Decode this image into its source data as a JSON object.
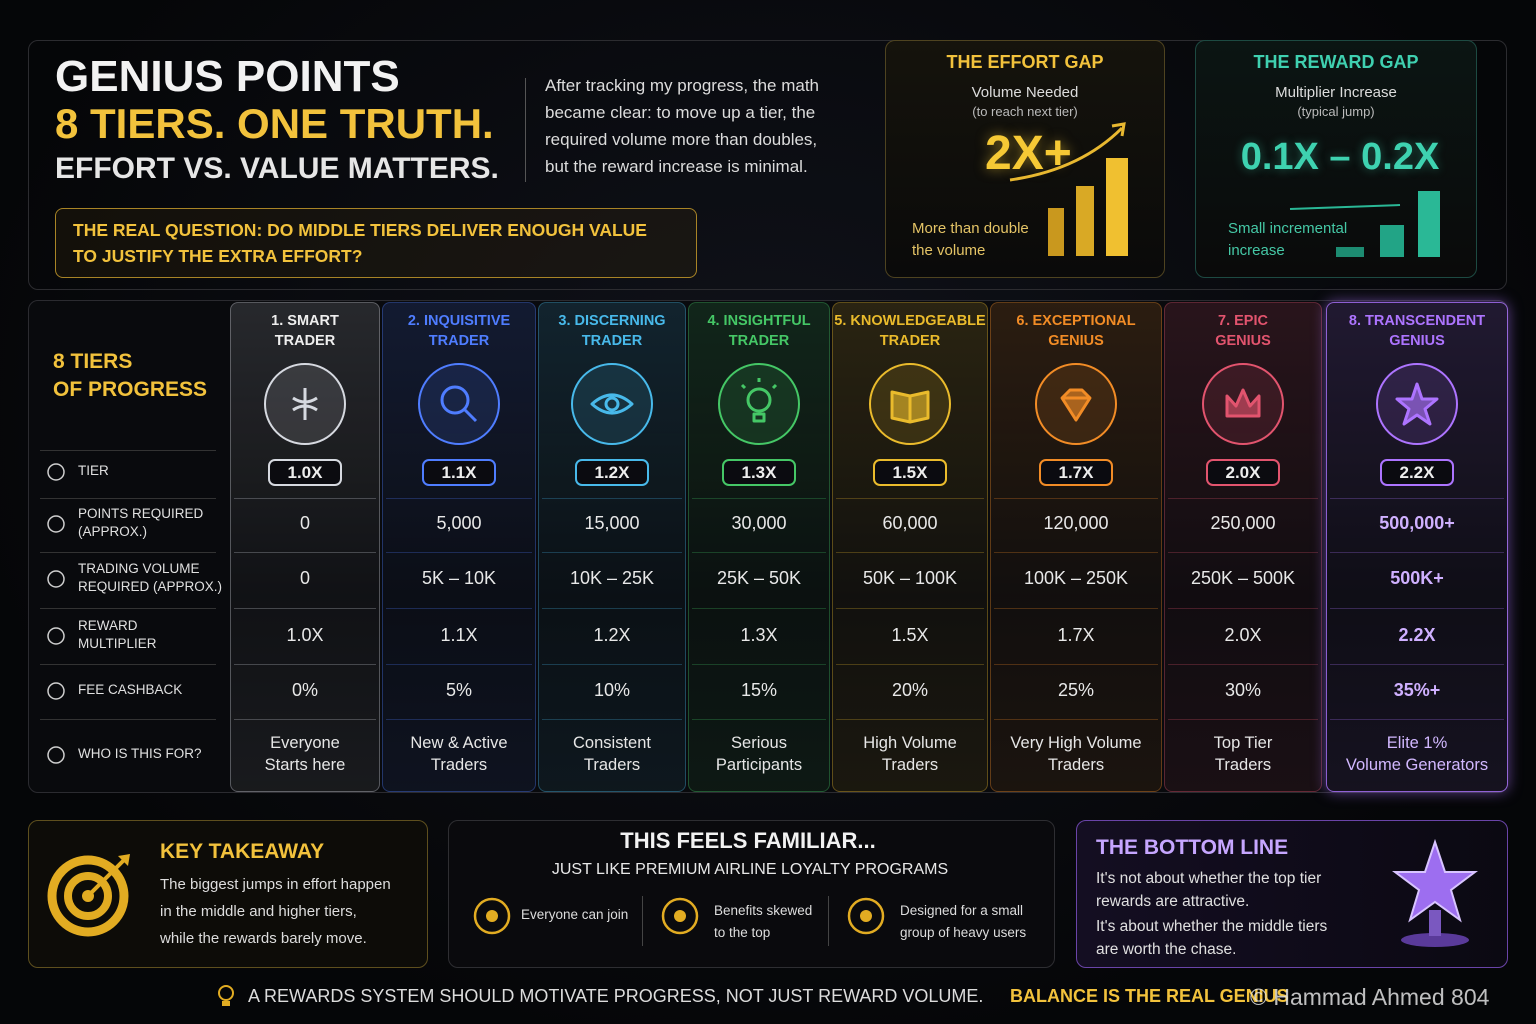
{
  "header": {
    "title": "GENIUS POINTS",
    "headline": "8 TIERS. ONE TRUTH.",
    "tagline": "EFFORT VS. VALUE MATTERS.",
    "intro": [
      "After tracking my progress, the math",
      "became clear: to move up a tier, the",
      "required volume more than doubles,",
      "but the reward increase is minimal."
    ],
    "question": [
      "THE REAL QUESTION: DO MIDDLE TIERS DELIVER ENOUGH VALUE",
      "TO JUSTIFY THE EXTRA EFFORT?"
    ]
  },
  "effort_gap": {
    "title": "THE EFFORT GAP",
    "label": "Volume Needed",
    "sublabel": "(to reach next tier)",
    "value": "2X+",
    "note": [
      "More than double",
      "the volume"
    ]
  },
  "reward_gap": {
    "title": "THE REWARD GAP",
    "label": "Multiplier Increase",
    "sublabel": "(typical jump)",
    "value": "0.1X – 0.2X",
    "note": [
      "Small incremental",
      "increase"
    ]
  },
  "table": {
    "heading": [
      "8 TIERS",
      "OF PROGRESS"
    ],
    "row_labels": [
      [
        "TIER"
      ],
      [
        "POINTS REQUIRED",
        "(APPROX.)"
      ],
      [
        "TRADING VOLUME",
        "REQUIRED (APPROX.)"
      ],
      [
        "REWARD",
        "MULTIPLIER"
      ],
      [
        "FEE CASHBACK"
      ],
      [
        "WHO IS THIS FOR?"
      ]
    ],
    "tiers": [
      {
        "name": [
          "1. SMART",
          "TRADER"
        ],
        "badge": "1.0X",
        "points": "0",
        "volume": "0",
        "multiplier": "1.0X",
        "cashback": "0%",
        "audience": [
          "Everyone",
          "Starts here"
        ],
        "color": "#d6d9e0"
      },
      {
        "name": [
          "2. INQUISITIVE",
          "TRADER"
        ],
        "badge": "1.1X",
        "points": "5,000",
        "volume": "5K – 10K",
        "multiplier": "1.1X",
        "cashback": "5%",
        "audience": [
          "New & Active",
          "Traders"
        ],
        "color": "#4f7dff"
      },
      {
        "name": [
          "3. DISCERNING",
          "TRADER"
        ],
        "badge": "1.2X",
        "points": "15,000",
        "volume": "10K – 25K",
        "multiplier": "1.2X",
        "cashback": "10%",
        "audience": [
          "Consistent",
          "Traders"
        ],
        "color": "#48b9ea"
      },
      {
        "name": [
          "4. INSIGHTFUL",
          "TRADER"
        ],
        "badge": "1.3X",
        "points": "30,000",
        "volume": "25K – 50K",
        "multiplier": "1.3X",
        "cashback": "15%",
        "audience": [
          "Serious",
          "Participants"
        ],
        "color": "#45c766"
      },
      {
        "name": [
          "5. KNOWLEDGEABLE",
          "TRADER"
        ],
        "badge": "1.5X",
        "points": "60,000",
        "volume": "50K – 100K",
        "multiplier": "1.5X",
        "cashback": "20%",
        "audience": [
          "High Volume",
          "Traders"
        ],
        "color": "#eabb2c"
      },
      {
        "name": [
          "6. EXCEPTIONAL",
          "GENIUS"
        ],
        "badge": "1.7X",
        "points": "120,000",
        "volume": "100K – 250K",
        "multiplier": "1.7X",
        "cashback": "25%",
        "audience": [
          "Very High Volume",
          "Traders"
        ],
        "color": "#f28c26"
      },
      {
        "name": [
          "7. EPIC",
          "GENIUS"
        ],
        "badge": "2.0X",
        "points": "250,000",
        "volume": "250K – 500K",
        "multiplier": "2.0X",
        "cashback": "30%",
        "audience": [
          "Top Tier",
          "Traders"
        ],
        "color": "#e2546e"
      },
      {
        "name": [
          "8. TRANSCENDENT",
          "GENIUS"
        ],
        "badge": "2.2X",
        "points": "500,000+",
        "volume": "500K+",
        "multiplier": "2.2X",
        "cashback": "35%+",
        "audience": [
          "Elite 1%",
          "Volume Generators"
        ],
        "color": "#ad74ff"
      }
    ]
  },
  "takeaway": {
    "title": "KEY TAKEAWAY",
    "text": [
      "The biggest jumps in effort happen",
      "in the middle and higher tiers,",
      "while the rewards barely move."
    ]
  },
  "familiar": {
    "title": "THIS FEELS FAMILIAR...",
    "subtitle": "JUST LIKE PREMIUM AIRLINE LOYALTY PROGRAMS",
    "items": [
      [
        "Everyone can join"
      ],
      [
        "Benefits skewed",
        "to the top"
      ],
      [
        "Designed for a small",
        "group of heavy users"
      ]
    ]
  },
  "bottom_line": {
    "title": "THE BOTTOM LINE",
    "paragraphs": [
      [
        "It's not about whether the top tier",
        "rewards are attractive."
      ],
      [
        "It's about whether the middle tiers",
        "are worth the chase."
      ]
    ]
  },
  "footer": {
    "text": "A REWARDS SYSTEM SHOULD MOTIVATE PROGRESS, NOT JUST REWARD VOLUME.",
    "highlight": "BALANCE IS THE REAL GENIUS",
    "watermark": "© Hammad Ahmed 804"
  }
}
